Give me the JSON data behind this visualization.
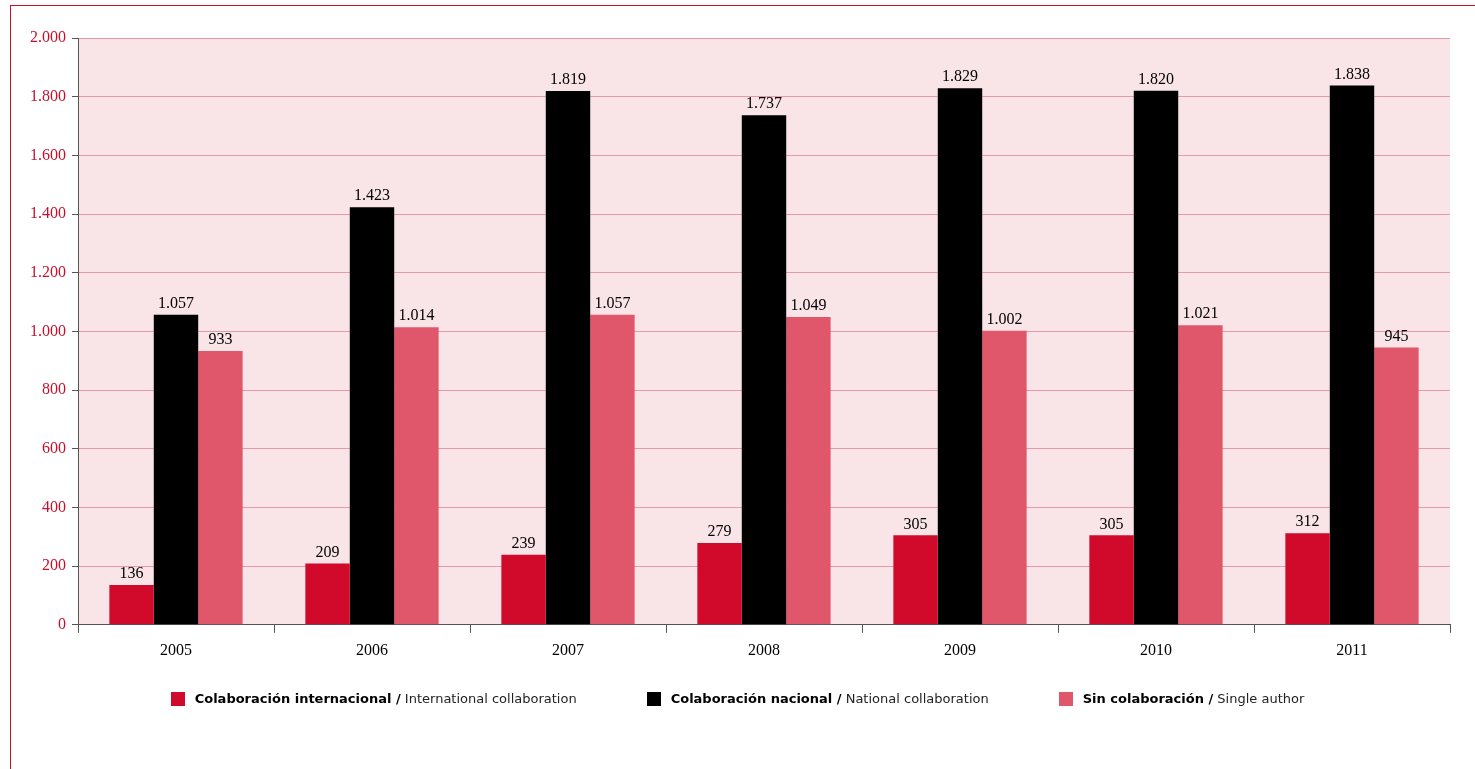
{
  "chart_data": {
    "type": "bar",
    "categories": [
      "2005",
      "2006",
      "2007",
      "2008",
      "2009",
      "2010",
      "2011"
    ],
    "series": [
      {
        "name": "Colaboración internacional / International collaboration",
        "color": "#d10a2c",
        "values": [
          136,
          209,
          239,
          279,
          305,
          305,
          312
        ],
        "value_labels": [
          "136",
          "209",
          "239",
          "279",
          "305",
          "305",
          "312"
        ]
      },
      {
        "name": "Colaboración nacional / National collaboration",
        "color": "#000000",
        "values": [
          1057,
          1423,
          1819,
          1737,
          1829,
          1820,
          1838
        ],
        "value_labels": [
          "1.057",
          "1.423",
          "1.819",
          "1.737",
          "1.829",
          "1.820",
          "1.838"
        ]
      },
      {
        "name": "Sin colaboración / Single author",
        "color": "#e0566b",
        "values": [
          933,
          1014,
          1057,
          1049,
          1002,
          1021,
          945
        ],
        "value_labels": [
          "933",
          "1.014",
          "1.057",
          "1.049",
          "1.002",
          "1.021",
          "945"
        ]
      }
    ],
    "ylim": [
      0,
      2000
    ],
    "yticks": [
      0,
      200,
      400,
      600,
      800,
      {
        "value": 1000,
        "label": "1.000"
      },
      {
        "value": 1200,
        "label": "1.200"
      },
      {
        "value": 1400,
        "label": "1.400"
      },
      {
        "value": 1600,
        "label": "1.600"
      },
      {
        "value": 1800,
        "label": "1.800"
      },
      {
        "value": 2000,
        "label": "2.000"
      }
    ],
    "grid": "y",
    "legend": "bottom"
  }
}
